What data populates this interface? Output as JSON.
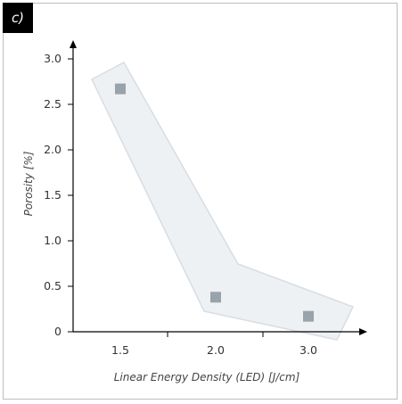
{
  "panel_label": "c)",
  "chart_data": {
    "type": "scatter",
    "title": "",
    "xlabel": "Linear Energy Density (LED) [J/cm]",
    "ylabel": "Porosity [%]",
    "categories": [
      "1.5",
      "2.0",
      "3.0"
    ],
    "values": [
      2.67,
      0.38,
      0.17
    ],
    "ylim": [
      0,
      3.0
    ],
    "yticks": [
      "0",
      "0.5",
      "1.0",
      "1.5",
      "2.0",
      "2.5",
      "3.0"
    ],
    "grid": false,
    "legend": "none",
    "marker_color": "#98a3aa",
    "band_color": "#eef1f4",
    "band_stroke": "#d7dde3"
  }
}
